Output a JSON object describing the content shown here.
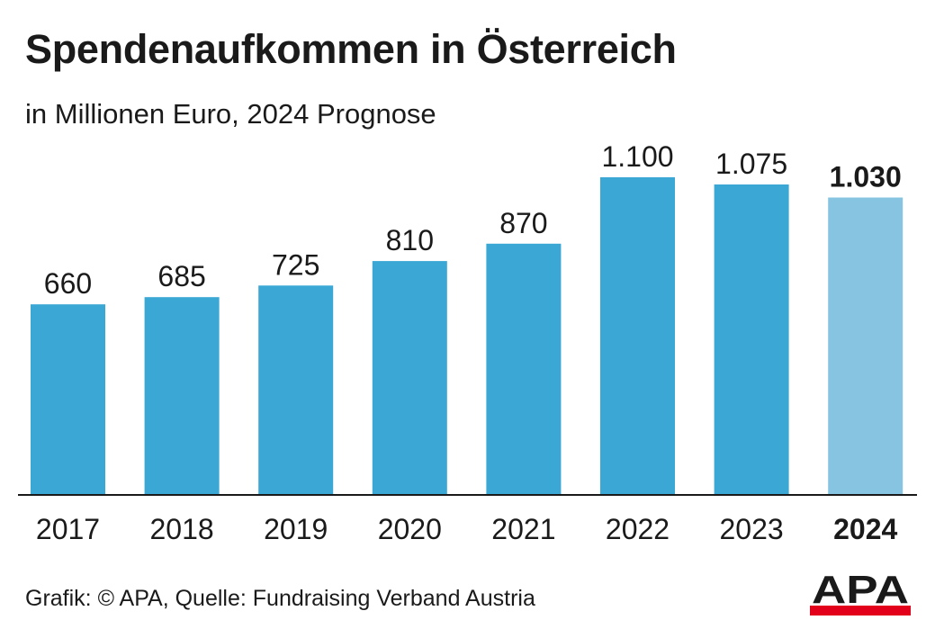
{
  "header": {
    "title": "Spendenaufkommen in Österreich",
    "subtitle": "in Millionen Euro, 2024 Prognose"
  },
  "footer": {
    "credit": "Grafik: © APA, Quelle: Fundraising Verband Austria"
  },
  "logo": {
    "text": "APA",
    "icon": "apa-logo"
  },
  "colors": {
    "bar": "#3aa7d5",
    "bar_forecast": "#87c4e1",
    "axis": "#1a1a1a",
    "text": "#1a1a1a",
    "logo_red": "#e3001b"
  },
  "chart_data": {
    "type": "bar",
    "title": "Spendenaufkommen in Österreich",
    "subtitle": "in Millionen Euro, 2024 Prognose",
    "xlabel": "",
    "ylabel": "",
    "ylim": [
      0,
      1100
    ],
    "grid": false,
    "categories": [
      "2017",
      "2018",
      "2019",
      "2020",
      "2021",
      "2022",
      "2023",
      "2024"
    ],
    "values": [
      660,
      685,
      725,
      810,
      870,
      1100,
      1075,
      1030
    ],
    "value_labels": [
      "660",
      "685",
      "725",
      "810",
      "870",
      "1.100",
      "1.075",
      "1.030"
    ],
    "forecast_index": 7
  }
}
